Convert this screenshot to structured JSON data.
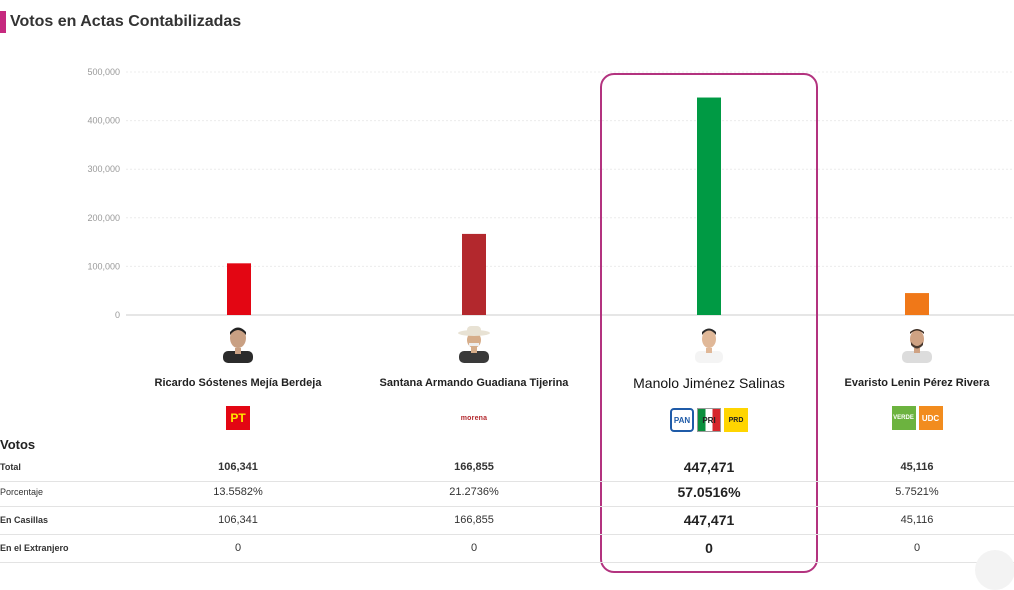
{
  "page_title": "Votos en Actas Contabilizadas",
  "colors": {
    "accent": "#c6297f",
    "winner_border": "#b3337f"
  },
  "chart_data": {
    "type": "bar",
    "categories": [
      "Ricardo Sóstenes Mejía Berdeja",
      "Santana Armando Guadiana Tijerina",
      "Manolo Jiménez Salinas",
      "Evaristo Lenin Pérez Rivera"
    ],
    "values": [
      106341,
      166855,
      447471,
      45116
    ],
    "colors": [
      "#e30613",
      "#b3282d",
      "#009a44",
      "#f07818"
    ],
    "yticks": [
      "0",
      "100,000",
      "200,000",
      "300,000",
      "400,000",
      "500,000"
    ],
    "ylim": [
      0,
      500000
    ],
    "grid": true,
    "highlight_index": 2
  },
  "candidates": [
    {
      "name": "Ricardo Sóstenes Mejía Berdeja",
      "parties": [
        {
          "label": "PT",
          "icon": "pt-logo-icon"
        }
      ]
    },
    {
      "name": "Santana Armando Guadiana Tijerina",
      "parties": [
        {
          "label": "morena",
          "icon": "morena-logo-icon"
        }
      ]
    },
    {
      "name": "Manolo Jiménez Salinas",
      "parties": [
        {
          "label": "PAN",
          "icon": "pan-logo-icon"
        },
        {
          "label": "PRI",
          "icon": "pri-logo-icon"
        },
        {
          "label": "PRD",
          "icon": "prd-logo-icon"
        }
      ]
    },
    {
      "name": "Evaristo Lenin Pérez Rivera",
      "parties": [
        {
          "label": "VERDE",
          "icon": "verde-logo-icon"
        },
        {
          "label": "UDC",
          "icon": "udc-logo-icon"
        }
      ]
    }
  ],
  "table": {
    "heading": "Votos",
    "rows": [
      {
        "label": "Total",
        "values": [
          "106,341",
          "166,855",
          "447,471",
          "45,116"
        ]
      },
      {
        "label": "Porcentaje",
        "values": [
          "13.5582%",
          "21.2736%",
          "57.0516%",
          "5.7521%"
        ]
      },
      {
        "label": "En Casillas",
        "values": [
          "106,341",
          "166,855",
          "447,471",
          "45,116"
        ]
      },
      {
        "label": "En el Extranjero",
        "values": [
          "0",
          "0",
          "0",
          "0"
        ]
      }
    ]
  }
}
